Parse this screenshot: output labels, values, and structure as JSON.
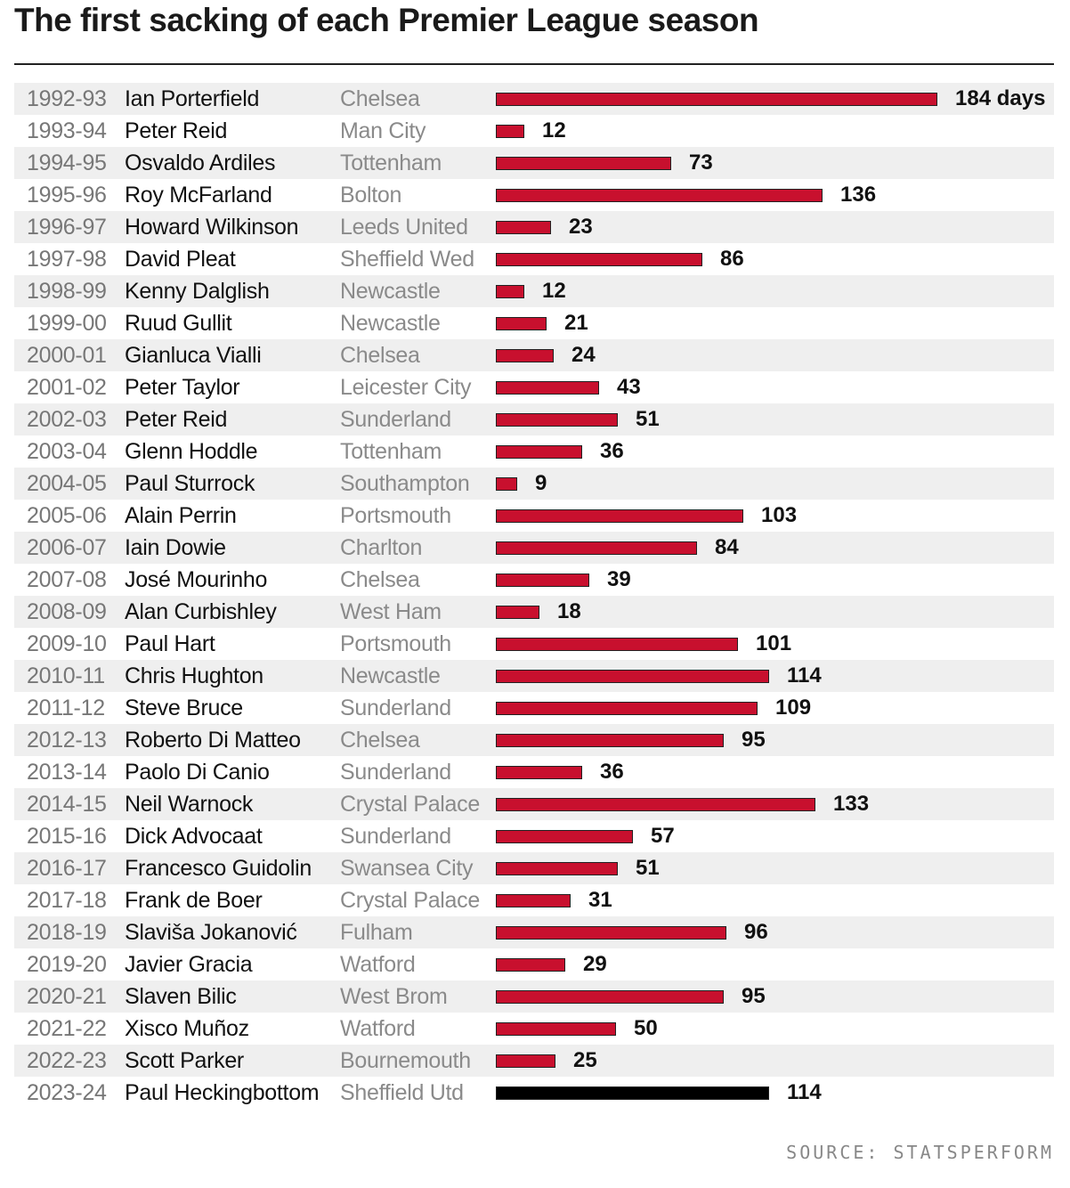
{
  "title": "The first sacking of each Premier League season",
  "source": "SOURCE: STATSPERFORM",
  "colors": {
    "bar": "#c8102e",
    "highlight": "#000000",
    "stripe": "#efefef"
  },
  "chart_data": {
    "type": "bar",
    "orientation": "horizontal",
    "unit_label": "days",
    "first_value_suffix": " days",
    "xlim": [
      0,
      184
    ],
    "highlight_last": true,
    "rows": [
      {
        "season": "1992-93",
        "manager": "Ian Porterfield",
        "club": "Chelsea",
        "days": 184
      },
      {
        "season": "1993-94",
        "manager": "Peter Reid",
        "club": "Man City",
        "days": 12
      },
      {
        "season": "1994-95",
        "manager": "Osvaldo Ardiles",
        "club": "Tottenham",
        "days": 73
      },
      {
        "season": "1995-96",
        "manager": "Roy McFarland",
        "club": "Bolton",
        "days": 136
      },
      {
        "season": "1996-97",
        "manager": "Howard Wilkinson",
        "club": "Leeds United",
        "days": 23
      },
      {
        "season": "1997-98",
        "manager": "David Pleat",
        "club": "Sheffield Wed",
        "days": 86
      },
      {
        "season": "1998-99",
        "manager": "Kenny Dalglish",
        "club": "Newcastle",
        "days": 12
      },
      {
        "season": "1999-00",
        "manager": "Ruud Gullit",
        "club": "Newcastle",
        "days": 21
      },
      {
        "season": "2000-01",
        "manager": "Gianluca Vialli",
        "club": "Chelsea",
        "days": 24
      },
      {
        "season": "2001-02",
        "manager": "Peter Taylor",
        "club": "Leicester City",
        "days": 43
      },
      {
        "season": "2002-03",
        "manager": "Peter Reid",
        "club": "Sunderland",
        "days": 51
      },
      {
        "season": "2003-04",
        "manager": "Glenn Hoddle",
        "club": "Tottenham",
        "days": 36
      },
      {
        "season": "2004-05",
        "manager": "Paul Sturrock",
        "club": "Southampton",
        "days": 9
      },
      {
        "season": "2005-06",
        "manager": "Alain Perrin",
        "club": "Portsmouth",
        "days": 103
      },
      {
        "season": "2006-07",
        "manager": "Iain Dowie",
        "club": "Charlton",
        "days": 84
      },
      {
        "season": "2007-08",
        "manager": "José Mourinho",
        "club": "Chelsea",
        "days": 39
      },
      {
        "season": "2008-09",
        "manager": "Alan Curbishley",
        "club": "West Ham",
        "days": 18
      },
      {
        "season": "2009-10",
        "manager": "Paul Hart",
        "club": "Portsmouth",
        "days": 101
      },
      {
        "season": "2010-11",
        "manager": "Chris Hughton",
        "club": "Newcastle",
        "days": 114
      },
      {
        "season": "2011-12",
        "manager": "Steve Bruce",
        "club": "Sunderland",
        "days": 109
      },
      {
        "season": "2012-13",
        "manager": "Roberto Di Matteo",
        "club": "Chelsea",
        "days": 95
      },
      {
        "season": "2013-14",
        "manager": "Paolo Di Canio",
        "club": "Sunderland",
        "days": 36
      },
      {
        "season": "2014-15",
        "manager": "Neil Warnock",
        "club": "Crystal Palace",
        "days": 133
      },
      {
        "season": "2015-16",
        "manager": "Dick Advocaat",
        "club": "Sunderland",
        "days": 57
      },
      {
        "season": "2016-17",
        "manager": "Francesco Guidolin",
        "club": "Swansea City",
        "days": 51
      },
      {
        "season": "2017-18",
        "manager": "Frank de Boer",
        "club": "Crystal Palace",
        "days": 31
      },
      {
        "season": "2018-19",
        "manager": "Slaviša Jokanović",
        "club": "Fulham",
        "days": 96
      },
      {
        "season": "2019-20",
        "manager": "Javier Gracia",
        "club": "Watford",
        "days": 29
      },
      {
        "season": "2020-21",
        "manager": "Slaven Bilic",
        "club": "West Brom",
        "days": 95
      },
      {
        "season": "2021-22",
        "manager": "Xisco Muñoz",
        "club": "Watford",
        "days": 50
      },
      {
        "season": "2022-23",
        "manager": "Scott Parker",
        "club": "Bournemouth",
        "days": 25
      },
      {
        "season": "2023-24",
        "manager": "Paul Heckingbottom",
        "club": "Sheffield Utd",
        "days": 114
      }
    ]
  }
}
